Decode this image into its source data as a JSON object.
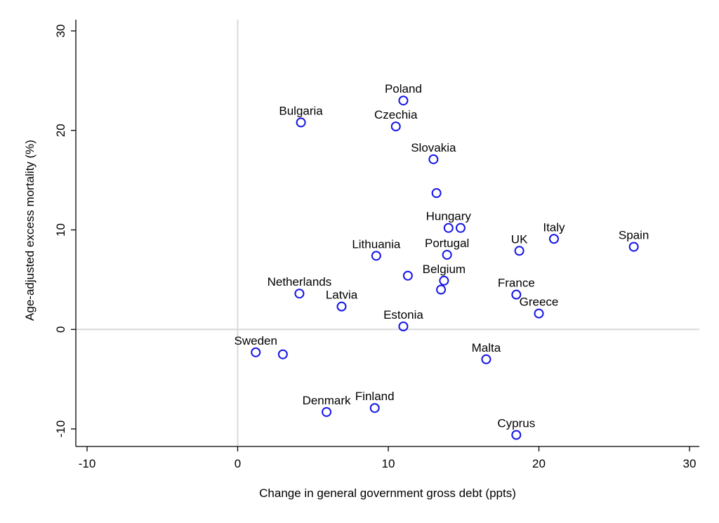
{
  "chart_data": {
    "type": "scatter",
    "title": "",
    "xlabel": "Change in general government gross debt (ppts)",
    "ylabel": "Age-adjusted excess mortality (%)",
    "xlim": [
      -10,
      30
    ],
    "ylim": [
      -10,
      30
    ],
    "xticks": [
      "-10",
      "0",
      "10",
      "20",
      "30"
    ],
    "yticks": [
      "-10",
      "0",
      "10",
      "20",
      "30"
    ],
    "reference_lines": {
      "x": 0,
      "y": 0
    },
    "marker_color": "#1515e6",
    "points": [
      {
        "label": "Poland",
        "x": 11.0,
        "y": 23.0
      },
      {
        "label": "Bulgaria",
        "x": 4.2,
        "y": 20.8
      },
      {
        "label": "Czechia",
        "x": 10.5,
        "y": 20.4
      },
      {
        "label": "Slovakia",
        "x": 13.0,
        "y": 17.1
      },
      {
        "label": "",
        "x": 13.2,
        "y": 13.7
      },
      {
        "label": "Hungary",
        "x": 14.0,
        "y": 10.2
      },
      {
        "label": "",
        "x": 14.8,
        "y": 10.2
      },
      {
        "label": "Italy",
        "x": 21.0,
        "y": 9.1
      },
      {
        "label": "Spain",
        "x": 26.3,
        "y": 8.3
      },
      {
        "label": "UK",
        "x": 18.7,
        "y": 7.9
      },
      {
        "label": "Portugal",
        "x": 13.9,
        "y": 7.5
      },
      {
        "label": "Lithuania",
        "x": 9.2,
        "y": 7.4
      },
      {
        "label": "",
        "x": 11.3,
        "y": 5.4
      },
      {
        "label": "Belgium",
        "x": 13.7,
        "y": 4.9
      },
      {
        "label": "",
        "x": 13.5,
        "y": 4.0
      },
      {
        "label": "Netherlands",
        "x": 4.1,
        "y": 3.6
      },
      {
        "label": "France",
        "x": 18.5,
        "y": 3.5
      },
      {
        "label": "Latvia",
        "x": 6.9,
        "y": 2.3
      },
      {
        "label": "Greece",
        "x": 20.0,
        "y": 1.6
      },
      {
        "label": "Estonia",
        "x": 11.0,
        "y": 0.3
      },
      {
        "label": "Sweden",
        "x": 1.2,
        "y": -2.3
      },
      {
        "label": "",
        "x": 3.0,
        "y": -2.5
      },
      {
        "label": "Malta",
        "x": 16.5,
        "y": -3.0
      },
      {
        "label": "Finland",
        "x": 9.1,
        "y": -7.9
      },
      {
        "label": "Denmark",
        "x": 5.9,
        "y": -8.3
      },
      {
        "label": "Cyprus",
        "x": 18.5,
        "y": -10.6
      }
    ]
  }
}
